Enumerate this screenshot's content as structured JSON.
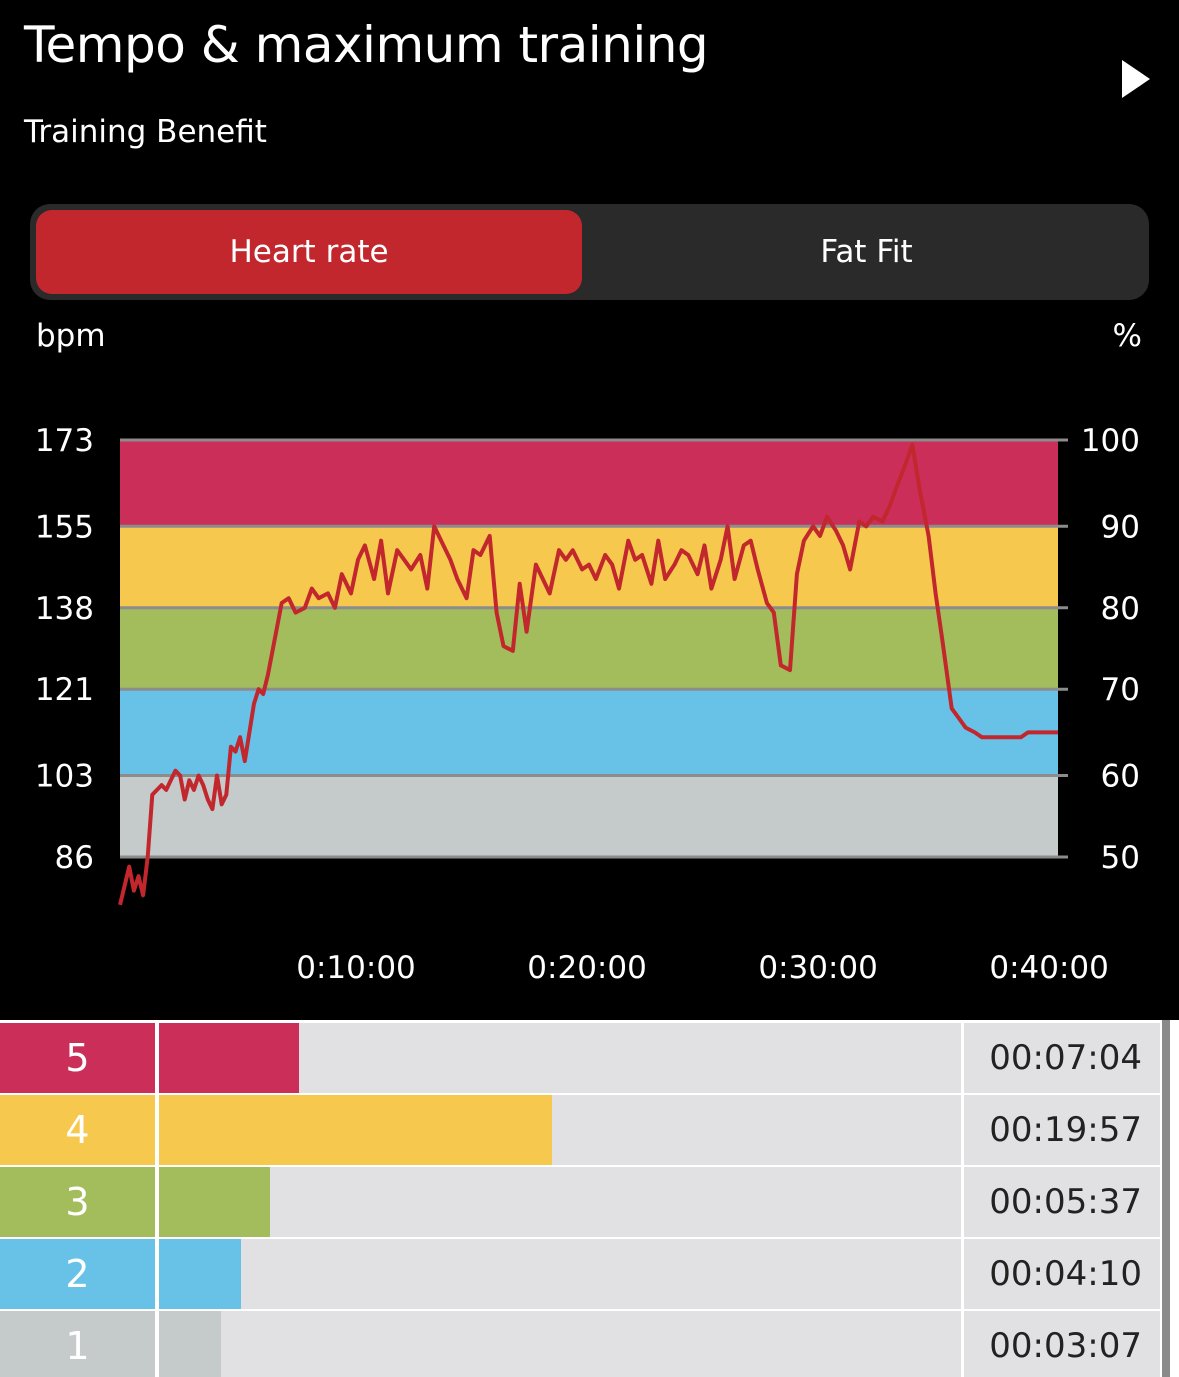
{
  "header": {
    "title": "Tempo & maximum training",
    "subtitle": "Training Benefit",
    "play_icon": "play-icon"
  },
  "tabs": {
    "heart_rate": "Heart rate",
    "fat_fit": "Fat Fit",
    "active": "heart_rate",
    "active_color": "#c1272d"
  },
  "chart_data": {
    "type": "line",
    "ylabel_left": "bpm",
    "ylabel_right": "%",
    "ylim": [
      86,
      173
    ],
    "y_ticks_left": [
      173,
      155,
      138,
      121,
      103,
      86
    ],
    "y_ticks_right": [
      100,
      90,
      80,
      70,
      60,
      50
    ],
    "x_ticks": [
      "0:10:00",
      "0:20:00",
      "0:30:00",
      "0:40:00"
    ],
    "x_tick_values_min": [
      10,
      20,
      30,
      40
    ],
    "xlim_min": [
      0,
      40.6
    ],
    "zones": [
      {
        "zone": 5,
        "from": 155,
        "to": 173,
        "color": "#cc2e5a"
      },
      {
        "zone": 4,
        "from": 138,
        "to": 155,
        "color": "#f6c94e"
      },
      {
        "zone": 3,
        "from": 121,
        "to": 138,
        "color": "#a3bd5c"
      },
      {
        "zone": 2,
        "from": 103,
        "to": 121,
        "color": "#68c2e8"
      },
      {
        "zone": 1,
        "from": 86,
        "to": 103,
        "color": "#c5cacb"
      }
    ],
    "series": [
      {
        "color": "#c1272d",
        "x": [
          0,
          0.2,
          0.4,
          0.6,
          0.8,
          1,
          1.2,
          1.4,
          1.6,
          1.8,
          2,
          2.2,
          2.4,
          2.6,
          2.8,
          3,
          3.2,
          3.4,
          3.6,
          3.8,
          4,
          4.2,
          4.4,
          4.6,
          4.8,
          5,
          5.2,
          5.4,
          5.6,
          5.8,
          6,
          6.2,
          6.4,
          6.6,
          6.8,
          7,
          7.3,
          7.6,
          8,
          8.3,
          8.6,
          9,
          9.3,
          9.6,
          10,
          10.3,
          10.6,
          11,
          11.3,
          11.6,
          12,
          12.3,
          12.6,
          13,
          13.3,
          13.6,
          14,
          14.3,
          14.6,
          15,
          15.3,
          15.6,
          16,
          16.3,
          16.6,
          17,
          17.3,
          17.6,
          18,
          18.3,
          18.6,
          19,
          19.3,
          19.6,
          20,
          20.3,
          20.6,
          21,
          21.3,
          21.6,
          22,
          22.3,
          22.6,
          23,
          23.3,
          23.6,
          24,
          24.3,
          24.6,
          25,
          25.3,
          25.6,
          26,
          26.3,
          26.6,
          27,
          27.3,
          27.6,
          28,
          28.3,
          28.6,
          29,
          29.3,
          29.6,
          30,
          30.3,
          30.6,
          31,
          31.3,
          31.6,
          32,
          32.3,
          32.6,
          33,
          33.3,
          33.6,
          34,
          34.3,
          34.6,
          35,
          35.3,
          35.6,
          36,
          36.3,
          36.6,
          37,
          37.3,
          37.6,
          38,
          38.3,
          38.6,
          39,
          39.3,
          39.6,
          40,
          40.3,
          40.6
        ],
        "values": [
          76,
          80,
          84,
          79,
          82,
          78,
          86,
          99,
          100,
          101,
          100,
          102,
          104,
          103,
          98,
          102,
          100,
          103,
          101,
          98,
          96,
          103,
          97,
          99,
          109,
          108,
          111,
          106,
          112,
          118,
          121,
          120,
          124,
          129,
          134,
          139,
          140,
          137,
          138,
          142,
          140,
          141,
          138,
          145,
          141,
          148,
          151,
          144,
          152,
          141,
          150,
          148,
          146,
          149,
          142,
          155,
          151,
          148,
          144,
          140,
          150,
          149,
          153,
          137,
          130,
          129,
          143,
          133,
          147,
          144,
          141,
          150,
          148,
          150,
          146,
          147,
          144,
          149,
          147,
          142,
          152,
          148,
          149,
          143,
          152,
          144,
          147,
          150,
          149,
          145,
          151,
          142,
          148,
          155,
          144,
          151,
          152,
          146,
          139,
          137,
          126,
          125,
          145,
          152,
          155,
          153,
          157,
          154,
          151,
          146,
          156,
          155,
          157,
          156,
          159,
          163,
          168,
          172,
          163,
          153,
          141,
          131,
          117,
          115,
          113,
          112,
          111,
          111,
          111,
          111,
          111,
          111,
          112,
          112,
          112,
          112,
          112
        ]
      }
    ]
  },
  "zones_table": [
    {
      "zone": "5",
      "color": "#cc2e5a",
      "fraction": 0.174,
      "time": "00:07:04"
    },
    {
      "zone": "4",
      "color": "#f6c94e",
      "fraction": 0.49,
      "time": "00:19:57"
    },
    {
      "zone": "3",
      "color": "#a3bd5c",
      "fraction": 0.138,
      "time": "00:05:37"
    },
    {
      "zone": "2",
      "color": "#68c2e8",
      "fraction": 0.102,
      "time": "00:04:10"
    },
    {
      "zone": "1",
      "color": "#c5cacb",
      "fraction": 0.077,
      "time": "00:03:07"
    }
  ]
}
